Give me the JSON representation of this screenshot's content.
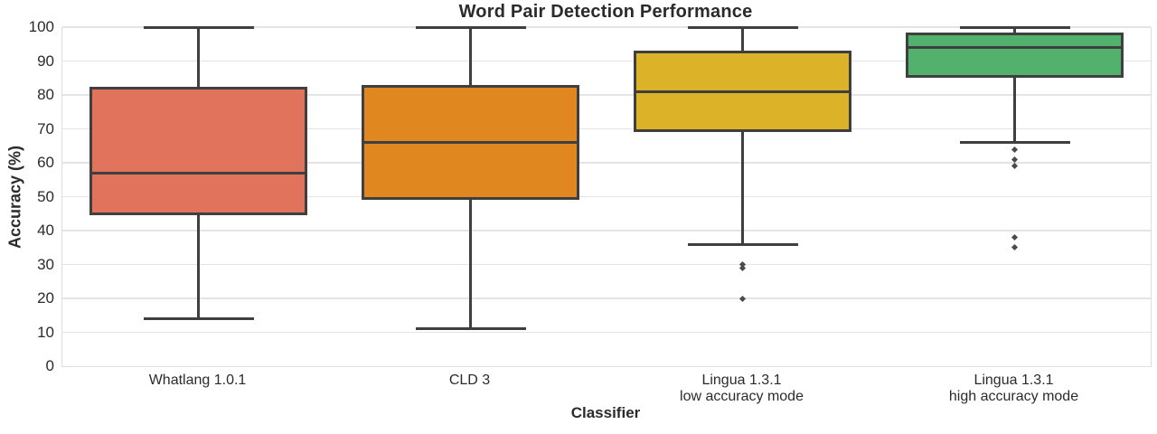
{
  "title": "Word Pair Detection Performance",
  "axes": {
    "y_label": "Accuracy (%)",
    "x_label": "Classifier"
  },
  "chart_data": {
    "type": "boxplot",
    "title": "Word Pair Detection Performance",
    "xlabel": "Classifier",
    "ylabel": "Accuracy (%)",
    "ylim": [
      0,
      100
    ],
    "y_ticks": [
      0,
      10,
      20,
      30,
      40,
      50,
      60,
      70,
      80,
      90,
      100
    ],
    "grid": true,
    "background_color": "#ffffff",
    "grid_color": "#e4e4e4",
    "edge_color": "#3f3f3f",
    "categories": [
      "Whatlang 1.0.1",
      "CLD 3",
      "Lingua 1.3.1\nlow accuracy mode",
      "Lingua 1.3.1\nhigh accuracy mode"
    ],
    "series": [
      {
        "name": "Whatlang 1.0.1",
        "label_lines": [
          "Whatlang 1.0.1"
        ],
        "whisker_low": 14,
        "q1": 44.5,
        "median": 57,
        "q3": 82.5,
        "whisker_high": 100,
        "outliers": [],
        "color": "#e1735c"
      },
      {
        "name": "CLD 3",
        "label_lines": [
          "CLD 3"
        ],
        "whisker_low": 11,
        "q1": 49,
        "median": 66,
        "q3": 83,
        "whisker_high": 100,
        "outliers": [],
        "color": "#e0881f"
      },
      {
        "name": "Lingua 1.3.1 low accuracy mode",
        "label_lines": [
          "Lingua 1.3.1",
          "low accuracy mode"
        ],
        "whisker_low": 36,
        "q1": 69,
        "median": 81,
        "q3": 93,
        "whisker_high": 100,
        "outliers": [
          30,
          29,
          20
        ],
        "color": "#dcb228"
      },
      {
        "name": "Lingua 1.3.1 high accuracy mode",
        "label_lines": [
          "Lingua 1.3.1",
          "high accuracy mode"
        ],
        "whisker_low": 66,
        "q1": 85,
        "median": 94,
        "q3": 98.5,
        "whisker_high": 100,
        "outliers": [
          64,
          61,
          59,
          38,
          35
        ],
        "color": "#52b16c"
      }
    ]
  }
}
